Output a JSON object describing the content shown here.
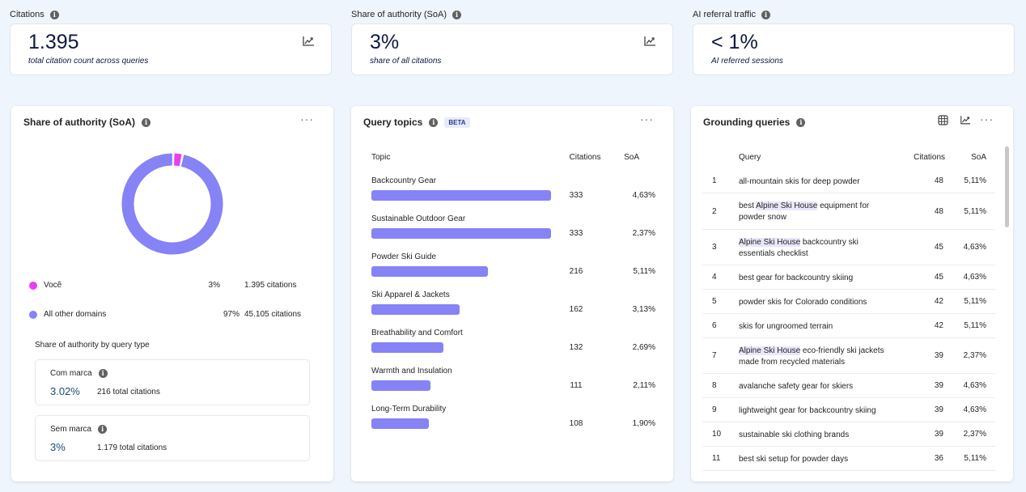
{
  "kpis": [
    {
      "label": "Citations",
      "value": "1.395",
      "sub": "total citation count across queries"
    },
    {
      "label": "Share of authority (SoA)",
      "value": "3%",
      "sub": "share of all citations"
    },
    {
      "label": "AI referral traffic",
      "value": "< 1%",
      "sub": "AI referred sessions"
    }
  ],
  "soa_panel": {
    "title": "Share of authority (SoA)",
    "legend": [
      {
        "name": "Você",
        "pct": "3%",
        "citations": "1.395 citations",
        "color": "#e83ef2"
      },
      {
        "name": "All other domains",
        "pct": "97%",
        "citations": "45.105 citations",
        "color": "#8583f5"
      }
    ],
    "query_type_title": "Share of authority by query type",
    "query_types": [
      {
        "name": "Com marca",
        "pct": "3.02%",
        "total": "216 total citations"
      },
      {
        "name": "Sem marca",
        "pct": "3%",
        "total": "1.179 total citations"
      }
    ]
  },
  "chart_data": {
    "type": "pie",
    "categories": [
      "Você",
      "All other domains"
    ],
    "values": [
      3,
      97
    ],
    "colors": [
      "#e83ef2",
      "#8583f5"
    ]
  },
  "topics_panel": {
    "title": "Query topics",
    "badge": "BETA",
    "headers": {
      "topic": "Topic",
      "citations": "Citations",
      "soa": "SoA"
    },
    "rows": [
      {
        "topic": "Backcountry Gear",
        "citations": "333",
        "soa": "4,63%",
        "bar_fraction": 1.0
      },
      {
        "topic": "Sustainable Outdoor Gear",
        "citations": "333",
        "soa": "2,37%",
        "bar_fraction": 1.0
      },
      {
        "topic": "Powder Ski Guide",
        "citations": "216",
        "soa": "5,11%",
        "bar_fraction": 0.65
      },
      {
        "topic": "Ski Apparel & Jackets",
        "citations": "162",
        "soa": "3,13%",
        "bar_fraction": 0.49
      },
      {
        "topic": "Breathability and Comfort",
        "citations": "132",
        "soa": "2,69%",
        "bar_fraction": 0.4
      },
      {
        "topic": "Warmth and Insulation",
        "citations": "111",
        "soa": "2,11%",
        "bar_fraction": 0.33
      },
      {
        "topic": "Long-Term Durability",
        "citations": "108",
        "soa": "1,90%",
        "bar_fraction": 0.32
      }
    ]
  },
  "grounding_panel": {
    "title": "Grounding queries",
    "headers": {
      "query": "Query",
      "citations": "Citations",
      "soa": "SoA"
    },
    "brand": "Alpine Ski House",
    "rows": [
      {
        "num": "1",
        "pre": "all-mountain skis for deep powder",
        "brand": "",
        "post": "",
        "citations": "48",
        "soa": "5,11%"
      },
      {
        "num": "2",
        "pre": "best ",
        "brand": "Alpine Ski House",
        "post": " equipment for powder snow",
        "citations": "48",
        "soa": "5,11%"
      },
      {
        "num": "3",
        "pre": "",
        "brand": "Alpine Ski House",
        "post": " backcountry ski essentials checklist",
        "citations": "45",
        "soa": "4,63%"
      },
      {
        "num": "4",
        "pre": "best gear for backcountry skiing",
        "brand": "",
        "post": "",
        "citations": "45",
        "soa": "4,63%"
      },
      {
        "num": "5",
        "pre": "powder skis for Colorado conditions",
        "brand": "",
        "post": "",
        "citations": "42",
        "soa": "5,11%"
      },
      {
        "num": "6",
        "pre": "skis for ungroomed terrain",
        "brand": "",
        "post": "",
        "citations": "42",
        "soa": "5,11%"
      },
      {
        "num": "7",
        "pre": "",
        "brand": "Alpine Ski House",
        "post": " eco-friendly ski jackets made from recycled materials",
        "citations": "39",
        "soa": "2,37%"
      },
      {
        "num": "8",
        "pre": "avalanche safety gear for skiers",
        "brand": "",
        "post": "",
        "citations": "39",
        "soa": "4,63%"
      },
      {
        "num": "9",
        "pre": "lightweight gear for backcountry skiing",
        "brand": "",
        "post": "",
        "citations": "39",
        "soa": "4,63%"
      },
      {
        "num": "10",
        "pre": "sustainable ski clothing brands",
        "brand": "",
        "post": "",
        "citations": "39",
        "soa": "2,37%"
      },
      {
        "num": "11",
        "pre": "best ski setup for powder days",
        "brand": "",
        "post": "",
        "citations": "36",
        "soa": "5,11%"
      }
    ]
  },
  "icons": {
    "info": "info-icon",
    "trend": "trend-chart-icon",
    "more": "more-horizontal-icon",
    "table": "table-view-icon"
  }
}
